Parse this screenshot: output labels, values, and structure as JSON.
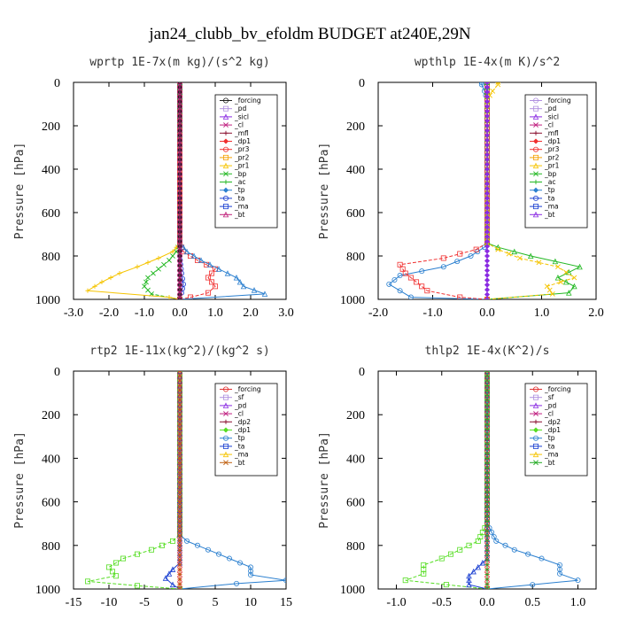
{
  "figure_title": "jan24_clubb_bv_efoldm  BUDGET at240E,29N",
  "chart_data": [
    {
      "type": "line",
      "title": "wprtp  1E-7x(m kg)/(s^2 kg)",
      "ylabel": "Pressure [hPa]",
      "xlim": [
        -3.0,
        3.0
      ],
      "ylim": [
        1000,
        0
      ],
      "xticks": [
        "-3.0",
        "-2.0",
        "-1.0",
        "0.0",
        "1.0",
        "2.0",
        "3.0"
      ],
      "yticks": [
        "0",
        "200",
        "400",
        "600",
        "800",
        "1000"
      ],
      "legend": [
        "_forcing",
        "_pd",
        "_sicl",
        "_cl",
        "_mfl",
        "_dp1",
        "_pr3",
        "_pr2",
        "_pr1",
        "_bp",
        "_ac",
        "_tp",
        "_ta",
        "_ma",
        "_bt"
      ],
      "series": [
        {
          "name": "_ta",
          "color": "#1a3fd1",
          "points": [
            [
              0,
              1000
            ],
            [
              0.05,
              970
            ],
            [
              0.1,
              930
            ],
            [
              0.05,
              880
            ],
            [
              0.02,
              840
            ],
            [
              0,
              800
            ],
            [
              0,
              0
            ]
          ]
        },
        {
          "name": "_pr3",
          "color": "#f03030",
          "points": [
            [
              0,
              1000
            ],
            [
              0.3,
              990
            ],
            [
              0.8,
              970
            ],
            [
              1.0,
              940
            ],
            [
              0.8,
              900
            ],
            [
              1.0,
              860
            ],
            [
              0.5,
              820
            ],
            [
              0.1,
              780
            ],
            [
              0,
              740
            ],
            [
              0,
              0
            ]
          ]
        },
        {
          "name": "_tp",
          "color": "#2a7fcf",
          "points": [
            [
              0,
              1000
            ],
            [
              2.4,
              975
            ],
            [
              1.8,
              940
            ],
            [
              1.6,
              900
            ],
            [
              1.1,
              860
            ],
            [
              0.6,
              820
            ],
            [
              0.2,
              780
            ],
            [
              0,
              740
            ],
            [
              0,
              0
            ]
          ]
        },
        {
          "name": "_ac",
          "color": "#22b822",
          "points": [
            [
              0,
              1000
            ],
            [
              -0.8,
              975
            ],
            [
              -1.0,
              940
            ],
            [
              -0.9,
              900
            ],
            [
              -0.6,
              860
            ],
            [
              -0.3,
              820
            ],
            [
              -0.1,
              780
            ],
            [
              0,
              740
            ],
            [
              0,
              0
            ]
          ]
        },
        {
          "name": "_pr1",
          "color": "#f5c400",
          "points": [
            [
              0,
              1000
            ],
            [
              -0.3,
              990
            ],
            [
              -2.6,
              960
            ],
            [
              -2.2,
              920
            ],
            [
              -1.7,
              880
            ],
            [
              -1.2,
              850
            ],
            [
              -0.6,
              810
            ],
            [
              -0.2,
              780
            ],
            [
              0,
              740
            ],
            [
              0,
              0
            ]
          ]
        },
        {
          "name": "_forcing",
          "color": "#222222",
          "points": [
            [
              0,
              1000
            ],
            [
              0,
              0
            ]
          ]
        },
        {
          "name": "_bt",
          "color": "#c0207a",
          "points": [
            [
              0,
              1000
            ],
            [
              0,
              0
            ]
          ]
        }
      ]
    },
    {
      "type": "line",
      "title": "wpthlp  1E-4x(m K)/s^2",
      "ylabel": "Pressure [hPa]",
      "xlim": [
        -2.0,
        2.0
      ],
      "ylim": [
        1000,
        0
      ],
      "xticks": [
        "-2.0",
        "-1.0",
        "0.0",
        "1.0",
        "2.0"
      ],
      "yticks": [
        "0",
        "200",
        "400",
        "600",
        "800",
        "1000"
      ],
      "legend": [
        "_forcing",
        "_pd",
        "_sicl",
        "_cl",
        "_mfl",
        "_dp1",
        "_pr3",
        "_pr2",
        "_pr1",
        "_bp",
        "_ac",
        "_tp",
        "_ta",
        "_ma",
        "_bt"
      ],
      "series": [
        {
          "name": "_tp",
          "color": "#2a7fcf",
          "points": [
            [
              0,
              1000
            ],
            [
              -1.4,
              990
            ],
            [
              -1.6,
              960
            ],
            [
              -1.8,
              930
            ],
            [
              -1.6,
              890
            ],
            [
              -0.8,
              850
            ],
            [
              -0.3,
              800
            ],
            [
              -0.05,
              760
            ],
            [
              0,
              740
            ],
            [
              0,
              80
            ],
            [
              -0.05,
              40
            ],
            [
              -0.1,
              10
            ],
            [
              -0.1,
              0
            ]
          ]
        },
        {
          "name": "_pr3",
          "color": "#f03030",
          "points": [
            [
              0,
              1000
            ],
            [
              -0.5,
              990
            ],
            [
              -1.1,
              960
            ],
            [
              -1.3,
              920
            ],
            [
              -1.5,
              880
            ],
            [
              -1.6,
              840
            ],
            [
              -0.8,
              810
            ],
            [
              -0.2,
              770
            ],
            [
              0,
              740
            ],
            [
              0,
              0
            ]
          ]
        },
        {
          "name": "_ac",
          "color": "#22b822",
          "points": [
            [
              0,
              1000
            ],
            [
              1.5,
              970
            ],
            [
              1.6,
              940
            ],
            [
              1.3,
              900
            ],
            [
              1.7,
              850
            ],
            [
              0.8,
              800
            ],
            [
              0.2,
              760
            ],
            [
              0,
              740
            ],
            [
              0,
              0
            ]
          ]
        },
        {
          "name": "_pr1",
          "color": "#f5c400",
          "points": [
            [
              0,
              1000
            ],
            [
              1.2,
              975
            ],
            [
              1.1,
              940
            ],
            [
              1.6,
              900
            ],
            [
              1.3,
              850
            ],
            [
              0.6,
              810
            ],
            [
              0.2,
              770
            ],
            [
              0,
              740
            ],
            [
              0,
              80
            ],
            [
              0.1,
              40
            ],
            [
              0.2,
              10
            ],
            [
              0.2,
              0
            ]
          ]
        },
        {
          "name": "_forcing",
          "color": "#b090e0",
          "points": [
            [
              0,
              1000
            ],
            [
              0,
              0
            ]
          ]
        },
        {
          "name": "_bt",
          "color": "#8a2be2",
          "points": [
            [
              0,
              1000
            ],
            [
              0,
              0
            ]
          ]
        }
      ]
    },
    {
      "type": "line",
      "title": "rtp2  1E-11x(kg^2)/(kg^2 s)",
      "ylabel": "Pressure [hPa]",
      "xlim": [
        -15,
        15
      ],
      "ylim": [
        1000,
        0
      ],
      "xticks": [
        "-15",
        "-10",
        "-5",
        "0",
        "5",
        "10",
        "15"
      ],
      "yticks": [
        "0",
        "200",
        "400",
        "600",
        "800",
        "1000"
      ],
      "legend": [
        "_forcing",
        "_sf",
        "_pd",
        "_cl",
        "_dp2",
        "_dp1",
        "_tp",
        "_ta",
        "_ma",
        "_bt"
      ],
      "series": [
        {
          "name": "_tp",
          "color": "#2a7fcf",
          "points": [
            [
              0,
              1000
            ],
            [
              8,
              975
            ],
            [
              15,
              960
            ],
            [
              10,
              935
            ],
            [
              10,
              900
            ],
            [
              7,
              860
            ],
            [
              4,
              820
            ],
            [
              1,
              780
            ],
            [
              0,
              750
            ],
            [
              0,
              0
            ]
          ]
        },
        {
          "name": "_dp1",
          "color": "#55dd22",
          "points": [
            [
              0,
              1000
            ],
            [
              -6,
              985
            ],
            [
              -13,
              965
            ],
            [
              -9,
              940
            ],
            [
              -10,
              900
            ],
            [
              -8,
              860
            ],
            [
              -4,
              820
            ],
            [
              -1,
              780
            ],
            [
              0,
              750
            ],
            [
              0,
              0
            ]
          ]
        },
        {
          "name": "_ta",
          "color": "#1a3fd1",
          "points": [
            [
              0,
              1000
            ],
            [
              -1,
              980
            ],
            [
              -2,
              950
            ],
            [
              -1,
              910
            ],
            [
              0,
              880
            ],
            [
              0,
              0
            ]
          ]
        },
        {
          "name": "_forcing",
          "color": "#e03030",
          "points": [
            [
              0,
              1000
            ],
            [
              0,
              0
            ]
          ]
        },
        {
          "name": "_bt",
          "color": "#c06010",
          "points": [
            [
              0,
              1000
            ],
            [
              0,
              0
            ]
          ]
        }
      ]
    },
    {
      "type": "line",
      "title": "thlp2  1E-4x(K^2)/s",
      "ylabel": "Pressure [hPa]",
      "xlim": [
        -1.2,
        1.2
      ],
      "ylim": [
        1000,
        0
      ],
      "xticks": [
        "-1.0",
        "-0.5",
        "0.0",
        "0.5",
        "1.0"
      ],
      "yticks": [
        "0",
        "200",
        "400",
        "600",
        "800",
        "1000"
      ],
      "legend": [
        "_forcing",
        "_sf",
        "_pd",
        "_cl",
        "_dp2",
        "_dp1",
        "_tp",
        "_ta",
        "_ma",
        "_bt"
      ],
      "series": [
        {
          "name": "_tp",
          "color": "#2a7fcf",
          "points": [
            [
              0,
              1000
            ],
            [
              1.0,
              960
            ],
            [
              0.8,
              930
            ],
            [
              0.8,
              890
            ],
            [
              0.6,
              860
            ],
            [
              0.3,
              820
            ],
            [
              0.1,
              780
            ],
            [
              0,
              700
            ],
            [
              0,
              0
            ]
          ]
        },
        {
          "name": "_dp1",
          "color": "#55dd22",
          "points": [
            [
              0,
              1000
            ],
            [
              -0.9,
              960
            ],
            [
              -0.7,
              930
            ],
            [
              -0.7,
              890
            ],
            [
              -0.5,
              860
            ],
            [
              -0.3,
              820
            ],
            [
              -0.1,
              780
            ],
            [
              0,
              700
            ],
            [
              0,
              0
            ]
          ]
        },
        {
          "name": "_ta",
          "color": "#1a3fd1",
          "points": [
            [
              0,
              1000
            ],
            [
              -0.2,
              980
            ],
            [
              -0.2,
              940
            ],
            [
              -0.1,
              900
            ],
            [
              0,
              860
            ],
            [
              0,
              0
            ]
          ]
        },
        {
          "name": "_forcing",
          "color": "#e03030",
          "points": [
            [
              0,
              1000
            ],
            [
              0,
              0
            ]
          ]
        },
        {
          "name": "_bt",
          "color": "#22aa22",
          "points": [
            [
              0,
              1000
            ],
            [
              0,
              0
            ]
          ]
        }
      ]
    }
  ]
}
